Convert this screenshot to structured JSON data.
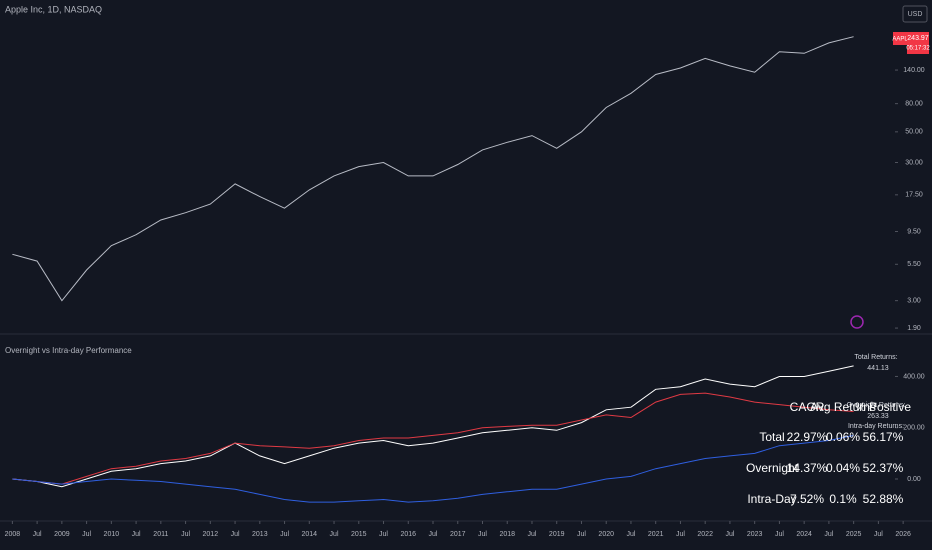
{
  "header": {
    "currency": "USD",
    "symbol": "AAPL",
    "countdown": "05:17:32"
  },
  "chart_data": [
    {
      "type": "line",
      "title": "Apple Inc, 1D, NASDAQ",
      "log_scale": true,
      "grid": false,
      "xlim": [
        "2007-10",
        "2026-08"
      ],
      "ylim": [
        1.75,
        450
      ],
      "yticks": [
        {
          "value": 1.9,
          "label": "1.90"
        },
        {
          "value": 3,
          "label": "3.00"
        },
        {
          "value": 5.5,
          "label": "5.50"
        },
        {
          "value": 9.5,
          "label": "9.50"
        },
        {
          "value": 17.5,
          "label": "17.50"
        },
        {
          "value": 30,
          "label": "30.00"
        },
        {
          "value": 50,
          "label": "50.00"
        },
        {
          "value": 80,
          "label": "80.00"
        },
        {
          "value": 140,
          "label": "140.00"
        }
      ],
      "x": [
        "2008-01",
        "2008-07",
        "2009-01",
        "2009-07",
        "2010-01",
        "2010-07",
        "2011-01",
        "2011-07",
        "2012-01",
        "2012-07",
        "2013-01",
        "2013-07",
        "2014-01",
        "2014-07",
        "2015-01",
        "2015-07",
        "2016-01",
        "2016-07",
        "2017-01",
        "2017-07",
        "2018-01",
        "2018-07",
        "2019-01",
        "2019-07",
        "2020-01",
        "2020-07",
        "2021-01",
        "2021-07",
        "2022-01",
        "2022-07",
        "2023-01",
        "2023-07",
        "2024-01",
        "2024-07",
        "2025-01"
      ],
      "series": [
        {
          "name": "AAPL",
          "color": "#b8bcc6",
          "values": [
            6.5,
            5.8,
            3.0,
            5.0,
            7.5,
            9.0,
            11.5,
            13,
            15,
            21,
            17,
            14,
            19,
            24,
            28,
            30,
            24,
            24,
            29,
            37,
            42,
            47,
            38,
            50,
            75,
            95,
            130,
            145,
            170,
            150,
            135,
            190,
            185,
            220,
            243.97
          ]
        }
      ]
    },
    {
      "type": "line",
      "title": "Overnight vs Intra-day Performance",
      "grid": false,
      "xlim": [
        "2007-10",
        "2026-08"
      ],
      "ylim": [
        -160,
        550
      ],
      "yticks": [
        {
          "value": 0,
          "label": "0.00"
        },
        {
          "value": 200,
          "label": "200.00"
        },
        {
          "value": 400,
          "label": "400.00"
        }
      ],
      "xticks": [
        {
          "value": "2008-01",
          "label": "2008"
        },
        {
          "value": "2008-07",
          "label": "Jul"
        },
        {
          "value": "2009-01",
          "label": "2009"
        },
        {
          "value": "2009-07",
          "label": "Jul"
        },
        {
          "value": "2010-01",
          "label": "2010"
        },
        {
          "value": "2010-07",
          "label": "Jul"
        },
        {
          "value": "2011-01",
          "label": "2011"
        },
        {
          "value": "2011-07",
          "label": "Jul"
        },
        {
          "value": "2012-01",
          "label": "2012"
        },
        {
          "value": "2012-07",
          "label": "Jul"
        },
        {
          "value": "2013-01",
          "label": "2013"
        },
        {
          "value": "2013-07",
          "label": "Jul"
        },
        {
          "value": "2014-01",
          "label": "2014"
        },
        {
          "value": "2014-07",
          "label": "Jul"
        },
        {
          "value": "2015-01",
          "label": "2015"
        },
        {
          "value": "2015-07",
          "label": "Jul"
        },
        {
          "value": "2016-01",
          "label": "2016"
        },
        {
          "value": "2016-07",
          "label": "Jul"
        },
        {
          "value": "2017-01",
          "label": "2017"
        },
        {
          "value": "2017-07",
          "label": "Jul"
        },
        {
          "value": "2018-01",
          "label": "2018"
        },
        {
          "value": "2018-07",
          "label": "Jul"
        },
        {
          "value": "2019-01",
          "label": "2019"
        },
        {
          "value": "2019-07",
          "label": "Jul"
        },
        {
          "value": "2020-01",
          "label": "2020"
        },
        {
          "value": "2020-07",
          "label": "Jul"
        },
        {
          "value": "2021-01",
          "label": "2021"
        },
        {
          "value": "2021-07",
          "label": "Jul"
        },
        {
          "value": "2022-01",
          "label": "2022"
        },
        {
          "value": "2022-07",
          "label": "Jul"
        },
        {
          "value": "2023-01",
          "label": "2023"
        },
        {
          "value": "2023-07",
          "label": "Jul"
        },
        {
          "value": "2024-01",
          "label": "2024"
        },
        {
          "value": "2024-07",
          "label": "Jul"
        },
        {
          "value": "2025-01",
          "label": "2025"
        },
        {
          "value": "2025-07",
          "label": "Jul"
        },
        {
          "value": "2026-01",
          "label": "2026"
        }
      ],
      "x": [
        "2008-01",
        "2008-07",
        "2009-01",
        "2009-07",
        "2010-01",
        "2010-07",
        "2011-01",
        "2011-07",
        "2012-01",
        "2012-07",
        "2013-01",
        "2013-07",
        "2014-01",
        "2014-07",
        "2015-01",
        "2015-07",
        "2016-01",
        "2016-07",
        "2017-01",
        "2017-07",
        "2018-01",
        "2018-07",
        "2019-01",
        "2019-07",
        "2020-01",
        "2020-07",
        "2021-01",
        "2021-07",
        "2022-01",
        "2022-07",
        "2023-01",
        "2023-07",
        "2024-01",
        "2024-07",
        "2025-01"
      ],
      "series": [
        {
          "name": "Total Returns:",
          "color": "#ffffff",
          "values": [
            0,
            -10,
            -30,
            0,
            30,
            40,
            60,
            70,
            90,
            140,
            90,
            60,
            90,
            120,
            140,
            150,
            130,
            140,
            160,
            180,
            190,
            200,
            190,
            220,
            270,
            280,
            350,
            360,
            390,
            370,
            360,
            400,
            400,
            420,
            441.13
          ]
        },
        {
          "name": "Overnight Returns:",
          "color": "#e03a44",
          "values": [
            0,
            -10,
            -20,
            10,
            40,
            50,
            70,
            80,
            100,
            140,
            130,
            125,
            120,
            130,
            150,
            160,
            160,
            170,
            180,
            200,
            205,
            210,
            210,
            230,
            250,
            240,
            300,
            330,
            335,
            320,
            300,
            290,
            280,
            270,
            263.33
          ]
        },
        {
          "name": "Intra-day Returns:",
          "color": "#2f5fe0",
          "values": [
            0,
            -10,
            -20,
            -10,
            0,
            -5,
            -10,
            -20,
            -30,
            -40,
            -60,
            -80,
            -90,
            -90,
            -85,
            -80,
            -90,
            -85,
            -75,
            -60,
            -50,
            -40,
            -40,
            -20,
            0,
            10,
            40,
            60,
            80,
            90,
            100,
            130,
            140,
            150,
            170
          ]
        }
      ],
      "table": {
        "columns": [
          "CAGR",
          "Avg Returns",
          "% Positive"
        ],
        "rows": [
          [
            "Total",
            "22.97%",
            "0.06%",
            "56.17%"
          ],
          [
            "Overnight",
            "14.37%",
            "0.04%",
            "52.37%"
          ],
          [
            "Intra-Day",
            "7.52%",
            "0.1%",
            "52.88%"
          ]
        ]
      }
    }
  ]
}
